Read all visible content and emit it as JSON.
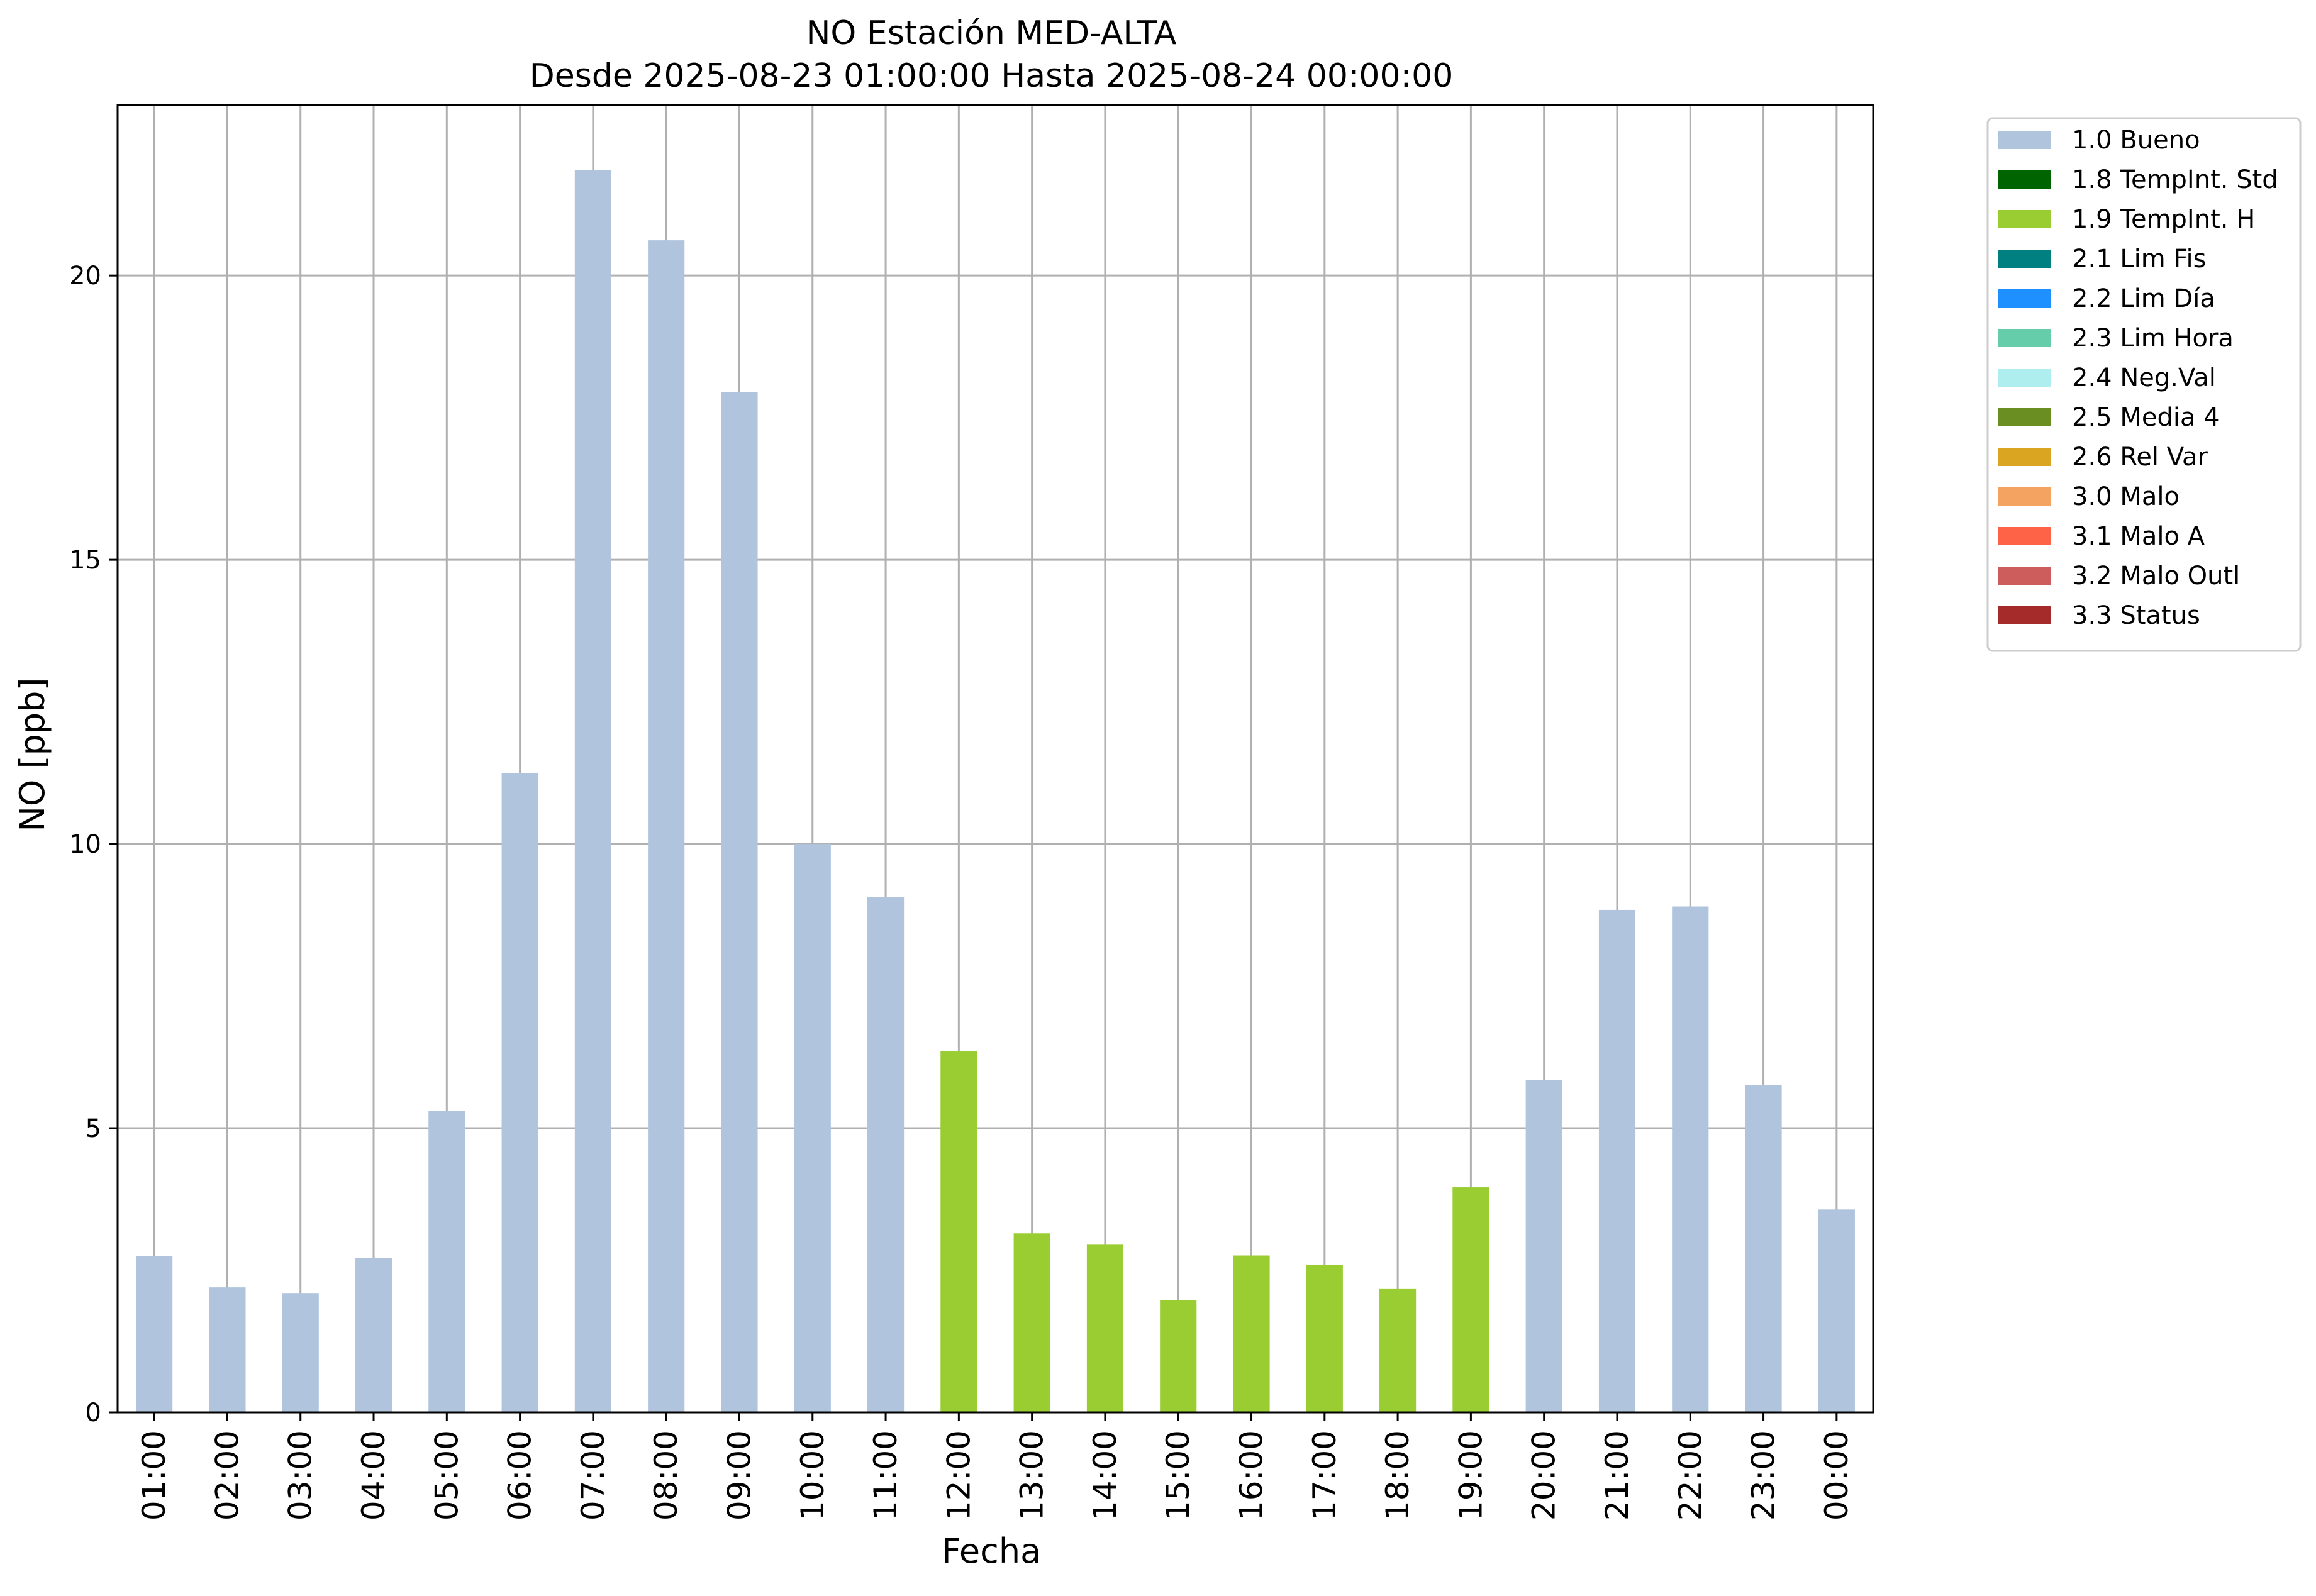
{
  "chart_data": {
    "type": "bar",
    "title": "NO Estación MED-ALTA",
    "subtitle": "Desde 2025-08-23 01:00:00 Hasta 2025-08-24 00:00:00",
    "xlabel": "Fecha",
    "ylabel": "NO [ppb]",
    "ylim": [
      0,
      23
    ],
    "yticks": [
      0,
      5,
      10,
      15,
      20
    ],
    "grid": true,
    "legend_position": "outside-top-right",
    "categories": [
      "01:00",
      "02:00",
      "03:00",
      "04:00",
      "05:00",
      "06:00",
      "07:00",
      "08:00",
      "09:00",
      "10:00",
      "11:00",
      "12:00",
      "13:00",
      "14:00",
      "15:00",
      "16:00",
      "17:00",
      "18:00",
      "19:00",
      "20:00",
      "21:00",
      "22:00",
      "23:00",
      "00:00"
    ],
    "values": [
      2.75,
      2.2,
      2.1,
      2.72,
      5.3,
      11.25,
      21.85,
      20.62,
      17.95,
      10.0,
      9.07,
      6.35,
      3.15,
      2.95,
      1.98,
      2.76,
      2.6,
      2.17,
      3.96,
      5.85,
      8.84,
      8.9,
      5.76,
      3.57
    ],
    "flags": [
      "1.0 Bueno",
      "1.0 Bueno",
      "1.0 Bueno",
      "1.0 Bueno",
      "1.0 Bueno",
      "1.0 Bueno",
      "1.0 Bueno",
      "1.0 Bueno",
      "1.0 Bueno",
      "1.0 Bueno",
      "1.0 Bueno",
      "1.9 TempInt. H",
      "1.9 TempInt. H",
      "1.9 TempInt. H",
      "1.9 TempInt. H",
      "1.9 TempInt. H",
      "1.9 TempInt. H",
      "1.9 TempInt. H",
      "1.9 TempInt. H",
      "1.0 Bueno",
      "1.0 Bueno",
      "1.0 Bueno",
      "1.0 Bueno",
      "1.0 Bueno"
    ],
    "legend": [
      {
        "label": "1.0 Bueno",
        "color": "#b0c4de"
      },
      {
        "label": "1.8 TempInt. Std",
        "color": "#006400"
      },
      {
        "label": "1.9 TempInt. H",
        "color": "#9acd32"
      },
      {
        "label": "2.1 Lim Fis",
        "color": "#008080"
      },
      {
        "label": "2.2 Lim Día",
        "color": "#1e90ff"
      },
      {
        "label": "2.3 Lim Hora",
        "color": "#66cdaa"
      },
      {
        "label": "2.4 Neg.Val",
        "color": "#afeeee"
      },
      {
        "label": "2.5 Media 4",
        "color": "#6b8e23"
      },
      {
        "label": "2.6 Rel Var",
        "color": "#daa520"
      },
      {
        "label": "3.0 Malo",
        "color": "#f4a460"
      },
      {
        "label": "3.1 Malo A",
        "color": "#ff6347"
      },
      {
        "label": "3.2 Malo Outl",
        "color": "#cd5c5c"
      },
      {
        "label": "3.3 Status",
        "color": "#a52a2a"
      }
    ]
  }
}
